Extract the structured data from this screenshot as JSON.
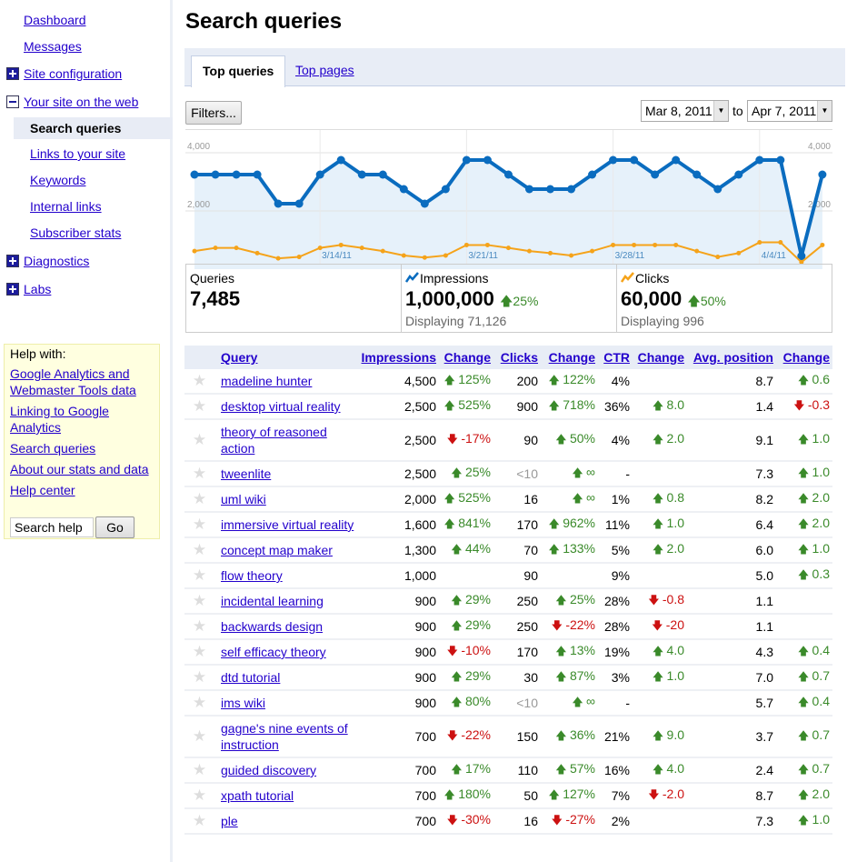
{
  "sidebar": {
    "items": [
      {
        "label": "Dashboard",
        "kind": "top"
      },
      {
        "label": "Messages",
        "kind": "top"
      },
      {
        "label": "Site configuration",
        "kind": "top",
        "icon": "plus"
      },
      {
        "label": "Your site on the web",
        "kind": "top",
        "icon": "minus"
      },
      {
        "label": "Search queries",
        "kind": "sel"
      },
      {
        "label": "Links to your site",
        "kind": "sub"
      },
      {
        "label": "Keywords",
        "kind": "sub"
      },
      {
        "label": "Internal links",
        "kind": "sub"
      },
      {
        "label": "Subscriber stats",
        "kind": "sub"
      },
      {
        "label": "Diagnostics",
        "kind": "top",
        "icon": "plus"
      },
      {
        "label": "Labs",
        "kind": "top",
        "icon": "plus"
      }
    ],
    "help": {
      "title": "Help with:",
      "links": [
        "Google Analytics and Webmaster Tools data",
        "Linking to Google Analytics",
        "Search queries",
        "About our stats and data",
        "Help center"
      ],
      "search_value": "Search help",
      "go": "Go"
    }
  },
  "page": {
    "title": "Search queries",
    "tabs": [
      "Top queries",
      "Top pages"
    ],
    "filters": "Filters...",
    "date_from": "Mar 8, 2011",
    "to": "to",
    "date_to": "Apr 7, 2011"
  },
  "summary": {
    "queries": {
      "label": "Queries",
      "value": "7,485"
    },
    "impressions": {
      "label": "Impressions",
      "value": "1,000,000",
      "change": "25%",
      "sub": "Displaying 71,126"
    },
    "clicks": {
      "label": "Clicks",
      "value": "60,000",
      "change": "50%",
      "sub": "Displaying 996"
    }
  },
  "chart_data": {
    "type": "line",
    "series": [
      {
        "name": "Impressions",
        "color": "#0a6cbf",
        "values": [
          3250,
          3250,
          3250,
          3250,
          2250,
          2250,
          3250,
          3750,
          3250,
          3250,
          2750,
          2250,
          2750,
          3750,
          3750,
          3250,
          2750,
          2750,
          2750,
          3250,
          3750,
          3750,
          3250,
          3750,
          3250,
          2750,
          3250,
          3750,
          3750,
          450,
          3250
        ]
      },
      {
        "name": "Clicks",
        "color": "#f5a31a",
        "values": [
          620,
          730,
          730,
          550,
          370,
          420,
          730,
          830,
          730,
          620,
          470,
          400,
          470,
          830,
          830,
          730,
          620,
          550,
          470,
          620,
          830,
          830,
          830,
          830,
          620,
          420,
          550,
          920,
          920,
          240,
          830
        ]
      }
    ],
    "x_labels": [
      {
        "index": 6,
        "label": "3/14/11"
      },
      {
        "index": 13,
        "label": "3/21/11"
      },
      {
        "index": 20,
        "label": "3/28/11"
      },
      {
        "index": 27,
        "label": "4/4/11"
      }
    ],
    "y_ticks": [
      {
        "value": 4000,
        "label": "4,000"
      },
      {
        "value": 2000,
        "label": "2,000"
      }
    ],
    "ylim": [
      0,
      4500
    ]
  },
  "table": {
    "headers": [
      "Query",
      "Impressions",
      "Change",
      "Clicks",
      "Change",
      "CTR",
      "Change",
      "Avg. position",
      "Change"
    ],
    "rows": [
      [
        "madeline hunter",
        "4,500",
        [
          "u",
          "125%"
        ],
        "200",
        [
          "u",
          "122%"
        ],
        "4%",
        null,
        "8.7",
        [
          "u",
          "0.6"
        ]
      ],
      [
        "desktop virtual reality",
        "2,500",
        [
          "u",
          "525%"
        ],
        "900",
        [
          "u",
          "718%"
        ],
        "36%",
        [
          "u",
          "8.0"
        ],
        "1.4",
        [
          "d",
          "-0.3"
        ]
      ],
      [
        "theory of reasoned action",
        "2,500",
        [
          "d",
          "-17%"
        ],
        "90",
        [
          "u",
          "50%"
        ],
        "4%",
        [
          "u",
          "2.0"
        ],
        "9.1",
        [
          "u",
          "1.0"
        ]
      ],
      [
        "tweenlite",
        "2,500",
        [
          "u",
          "25%"
        ],
        "<10",
        [
          "u",
          "∞"
        ],
        "-",
        null,
        "7.3",
        [
          "u",
          "1.0"
        ]
      ],
      [
        "uml wiki",
        "2,000",
        [
          "u",
          "525%"
        ],
        "16",
        [
          "u",
          "∞"
        ],
        "1%",
        [
          "u",
          "0.8"
        ],
        "8.2",
        [
          "u",
          "2.0"
        ]
      ],
      [
        "immersive virtual reality",
        "1,600",
        [
          "u",
          "841%"
        ],
        "170",
        [
          "u",
          "962%"
        ],
        "11%",
        [
          "u",
          "1.0"
        ],
        "6.4",
        [
          "u",
          "2.0"
        ]
      ],
      [
        "concept map maker",
        "1,300",
        [
          "u",
          "44%"
        ],
        "70",
        [
          "u",
          "133%"
        ],
        "5%",
        [
          "u",
          "2.0"
        ],
        "6.0",
        [
          "u",
          "1.0"
        ]
      ],
      [
        "flow theory",
        "1,000",
        null,
        "90",
        null,
        "9%",
        null,
        "5.0",
        [
          "u",
          "0.3"
        ]
      ],
      [
        "incidental learning",
        "900",
        [
          "u",
          "29%"
        ],
        "250",
        [
          "u",
          "25%"
        ],
        "28%",
        [
          "d",
          "-0.8"
        ],
        "1.1",
        null
      ],
      [
        "backwards design",
        "900",
        [
          "u",
          "29%"
        ],
        "250",
        [
          "d",
          "-22%"
        ],
        "28%",
        [
          "d",
          "-20"
        ],
        "1.1",
        null
      ],
      [
        "self efficacy theory",
        "900",
        [
          "d",
          "-10%"
        ],
        "170",
        [
          "u",
          "13%"
        ],
        "19%",
        [
          "u",
          "4.0"
        ],
        "4.3",
        [
          "u",
          "0.4"
        ]
      ],
      [
        "dtd tutorial",
        "900",
        [
          "u",
          "29%"
        ],
        "30",
        [
          "u",
          "87%"
        ],
        "3%",
        [
          "u",
          "1.0"
        ],
        "7.0",
        [
          "u",
          "0.7"
        ]
      ],
      [
        "ims wiki",
        "900",
        [
          "u",
          "80%"
        ],
        "<10",
        [
          "u",
          "∞"
        ],
        "-",
        null,
        "5.7",
        [
          "u",
          "0.4"
        ]
      ],
      [
        "gagne's nine events of instruction",
        "700",
        [
          "d",
          "-22%"
        ],
        "150",
        [
          "u",
          "36%"
        ],
        "21%",
        [
          "u",
          "9.0"
        ],
        "3.7",
        [
          "u",
          "0.7"
        ]
      ],
      [
        "guided discovery",
        "700",
        [
          "u",
          "17%"
        ],
        "110",
        [
          "u",
          "57%"
        ],
        "16%",
        [
          "u",
          "4.0"
        ],
        "2.4",
        [
          "u",
          "0.7"
        ]
      ],
      [
        "xpath tutorial",
        "700",
        [
          "u",
          "180%"
        ],
        "50",
        [
          "u",
          "127%"
        ],
        "7%",
        [
          "d",
          "-2.0"
        ],
        "8.7",
        [
          "u",
          "2.0"
        ]
      ],
      [
        "ple",
        "700",
        [
          "d",
          "-30%"
        ],
        "16",
        [
          "d",
          "-27%"
        ],
        "2%",
        null,
        "7.3",
        [
          "u",
          "1.0"
        ]
      ]
    ]
  }
}
